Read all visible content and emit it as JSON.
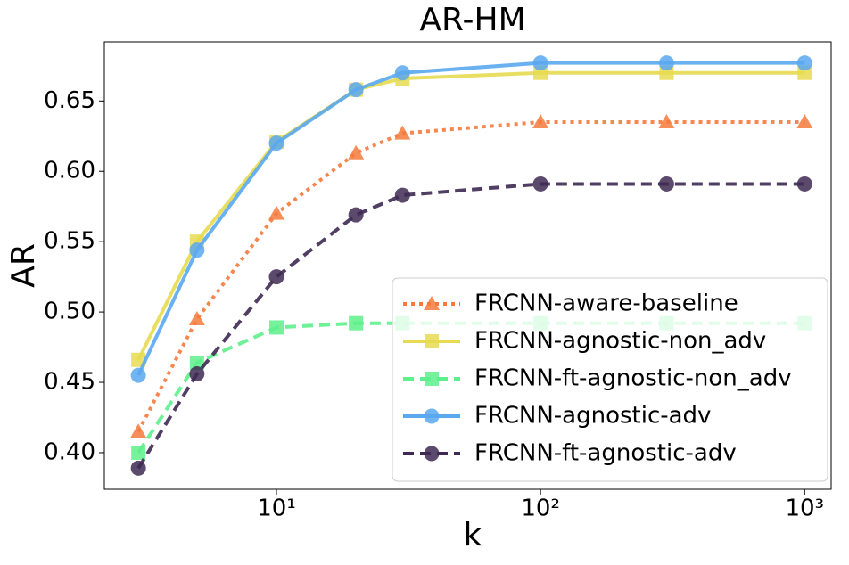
{
  "chart_data": {
    "type": "line",
    "title": "AR-HM",
    "x_label": "k",
    "y_label": "AR",
    "x": [
      3,
      5,
      10,
      20,
      30,
      100,
      300,
      1000
    ],
    "xscale": "log",
    "legend": "lower right",
    "xlim": [
      2.23,
      1260
    ],
    "ylim": [
      0.374,
      0.692
    ],
    "xticks": [
      {
        "value": 10,
        "label": "10¹"
      },
      {
        "value": 100,
        "label": "10²"
      },
      {
        "value": 1000,
        "label": "10³"
      }
    ],
    "yticks": [
      {
        "value": 0.4,
        "label": "0.40"
      },
      0.45,
      {
        "value": 0.5,
        "label": "0.50"
      },
      0.55,
      {
        "value": 0.6,
        "label": "0.60"
      },
      0.65
    ],
    "series": [
      {
        "name": "FRCNN-aware-baseline",
        "color": "#f47a3c",
        "linestyle": "dotted",
        "marker": "triangle",
        "values": [
          0.415,
          0.495,
          0.57,
          0.613,
          0.627,
          0.635,
          0.635,
          0.635
        ]
      },
      {
        "name": "FRCNN-agnostic-non_adv",
        "color": "#e6da50",
        "linestyle": "solid",
        "marker": "square",
        "values": [
          0.466,
          0.55,
          0.621,
          0.658,
          0.666,
          0.67,
          0.67,
          0.67
        ]
      },
      {
        "name": "FRCNN-ft-agnostic-non_adv",
        "color": "#5ef08c",
        "linestyle": "dashed",
        "marker": "square",
        "values": [
          0.4,
          0.464,
          0.489,
          0.492,
          0.492,
          0.492,
          0.492,
          0.492
        ]
      },
      {
        "name": "FRCNN-agnostic-adv",
        "color": "#5aa8f0",
        "linestyle": "solid",
        "marker": "circle",
        "values": [
          0.455,
          0.544,
          0.62,
          0.658,
          0.67,
          0.677,
          0.677,
          0.677
        ]
      },
      {
        "name": "FRCNN-ft-agnostic-adv",
        "color": "#3e2a52",
        "linestyle": "dashed",
        "marker": "circle",
        "values": [
          0.389,
          0.456,
          0.525,
          0.569,
          0.583,
          0.591,
          0.591,
          0.591
        ]
      }
    ]
  }
}
